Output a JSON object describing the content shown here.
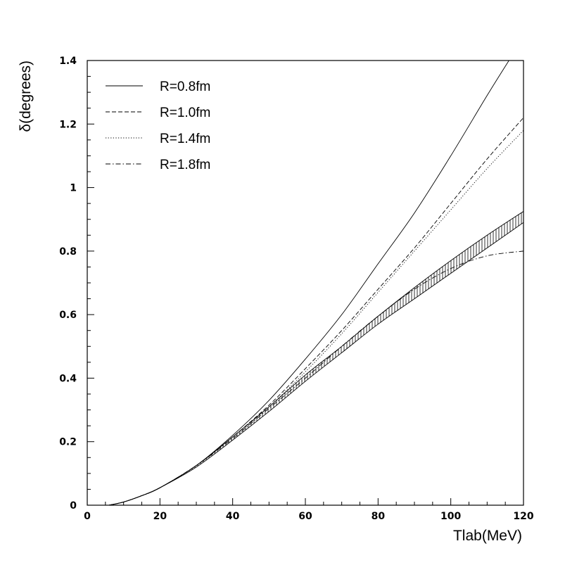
{
  "chart_data": {
    "type": "line",
    "xlabel": "Tlab(MeV)",
    "ylabel": "δ(degrees)",
    "xlim": [
      0,
      120
    ],
    "ylim": [
      0,
      1.4
    ],
    "xticks": [
      0,
      20,
      40,
      60,
      80,
      100,
      120
    ],
    "xtick_labels": [
      "0",
      "20",
      "40",
      "60",
      "80",
      "100",
      "120"
    ],
    "yticks": [
      0,
      0.2,
      0.4,
      0.6,
      0.8,
      1.0,
      1.2,
      1.4
    ],
    "ytick_labels": [
      "0",
      "0.2",
      "0.4",
      "0.6",
      "0.8",
      "1",
      "1.2",
      "1.4"
    ],
    "grid": false,
    "legend_position": "top-left",
    "series": [
      {
        "name": "R=0.8fm",
        "style": "solid",
        "x": [
          6,
          10,
          15,
          20,
          30,
          40,
          50,
          60,
          70,
          80,
          90,
          100,
          110,
          116
        ],
        "y": [
          0.0,
          0.01,
          0.03,
          0.055,
          0.125,
          0.22,
          0.33,
          0.46,
          0.6,
          0.76,
          0.92,
          1.1,
          1.29,
          1.4
        ]
      },
      {
        "name": "R=1.0fm",
        "style": "dashed",
        "x": [
          6,
          10,
          15,
          20,
          30,
          40,
          50,
          60,
          70,
          80,
          90,
          100,
          110,
          120
        ],
        "y": [
          0.0,
          0.01,
          0.03,
          0.055,
          0.125,
          0.215,
          0.315,
          0.43,
          0.55,
          0.68,
          0.81,
          0.95,
          1.09,
          1.22
        ]
      },
      {
        "name": "R=1.4fm",
        "style": "dotted",
        "x": [
          6,
          10,
          15,
          20,
          30,
          40,
          50,
          60,
          70,
          80,
          90,
          100,
          110,
          120
        ],
        "y": [
          0.0,
          0.01,
          0.03,
          0.055,
          0.125,
          0.215,
          0.31,
          0.42,
          0.54,
          0.67,
          0.8,
          0.93,
          1.06,
          1.18
        ]
      },
      {
        "name": "R=1.8fm",
        "style": "dashdot",
        "x": [
          6,
          10,
          15,
          20,
          30,
          40,
          50,
          60,
          70,
          80,
          90,
          100,
          110,
          120
        ],
        "y": [
          0.0,
          0.01,
          0.03,
          0.055,
          0.125,
          0.21,
          0.305,
          0.4,
          0.5,
          0.595,
          0.68,
          0.745,
          0.785,
          0.8
        ]
      }
    ],
    "band": {
      "style": "hatched",
      "x": [
        6,
        10,
        15,
        20,
        30,
        40,
        50,
        60,
        70,
        80,
        90,
        100,
        110,
        120
      ],
      "lower": [
        0.0,
        0.01,
        0.03,
        0.055,
        0.12,
        0.205,
        0.295,
        0.39,
        0.48,
        0.57,
        0.65,
        0.73,
        0.81,
        0.89
      ],
      "upper": [
        0.0,
        0.01,
        0.03,
        0.055,
        0.125,
        0.215,
        0.31,
        0.41,
        0.5,
        0.595,
        0.685,
        0.77,
        0.85,
        0.925
      ]
    }
  }
}
